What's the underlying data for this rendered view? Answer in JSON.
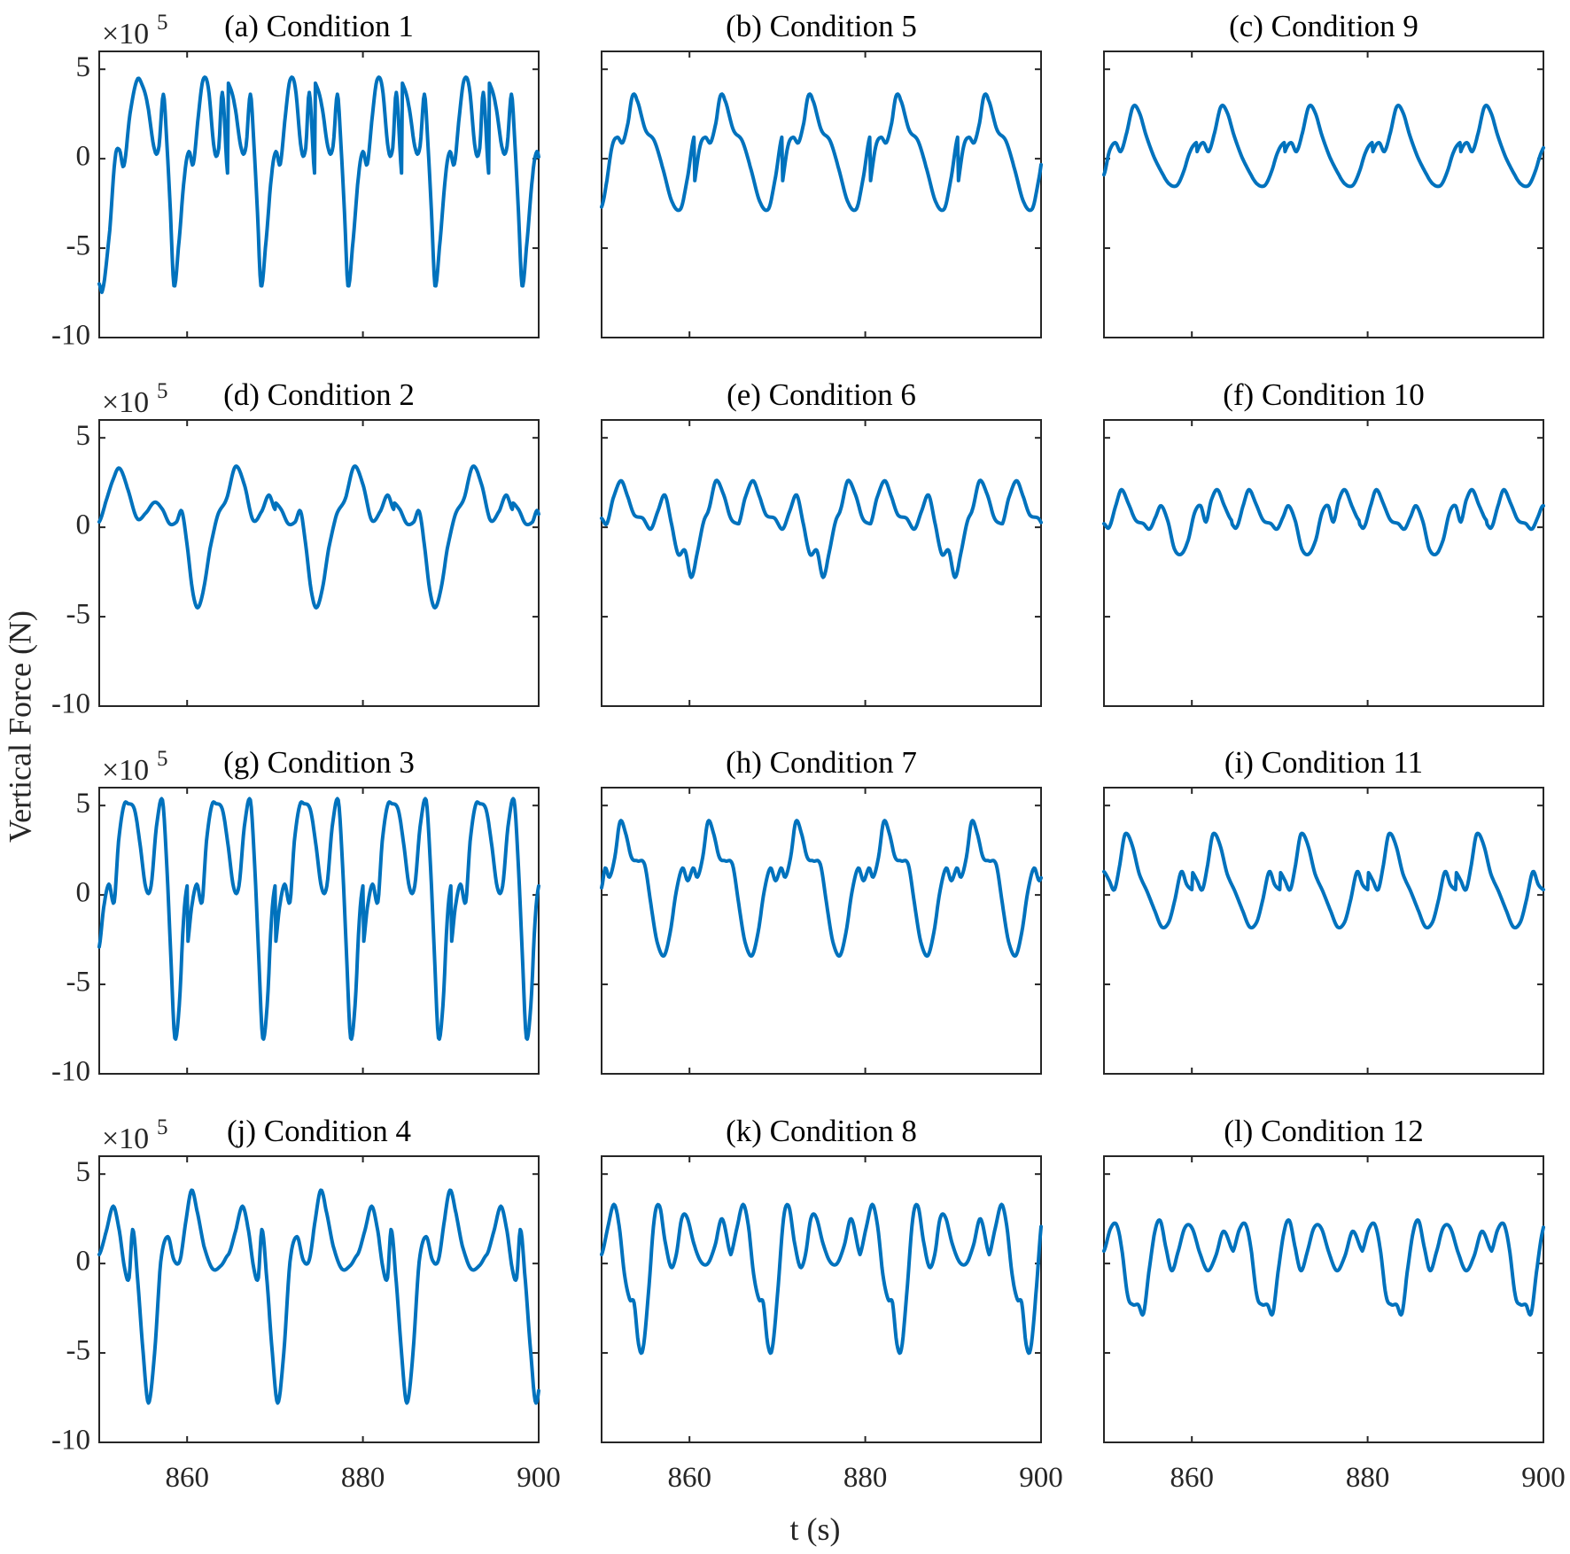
{
  "chart_data": {
    "type": "line",
    "ylabel": "Vertical Force (N)",
    "xlabel": "t (s)",
    "y_multiplier": "×10",
    "y_multiplier_exponent": "5",
    "xlim": [
      850,
      900
    ],
    "ylim": [
      -10,
      6
    ],
    "xticks": [
      860,
      880,
      900
    ],
    "yticks": [
      -10,
      -5,
      0,
      5
    ],
    "xtick_labels": [
      "860",
      "880",
      "900"
    ],
    "ytick_labels": [
      "-10",
      "-5",
      "0",
      "5"
    ],
    "grid": false,
    "line_color": "#0072BD",
    "period_s": 10,
    "panels": [
      {
        "title": "(a) Condition 1",
        "period_s": 9.9,
        "x": [
          850.0,
          850.4,
          851.2,
          851.8,
          852.3,
          852.8,
          853.5,
          854.3,
          854.9,
          855.5,
          856.3,
          856.8,
          857.3,
          857.7,
          858.1,
          858.5,
          859.0,
          859.7,
          860.2,
          860.7,
          861.3,
          861.8,
          862.4,
          863.1,
          863.6,
          864.0,
          864.6
        ],
        "y": [
          -7.0,
          -7.3,
          -4.0,
          0.0,
          0.5,
          -0.4,
          2.5,
          4.4,
          4.1,
          3.0,
          0.5,
          0.7,
          3.6,
          0.8,
          -3.0,
          -7.1,
          -5.0,
          -1.0,
          0.4,
          -0.3,
          2.5,
          4.4,
          4.0,
          0.5,
          0.6,
          3.7,
          -0.8
        ]
      },
      {
        "title": "(b) Condition 5",
        "period_s": 10,
        "x": [
          850.0,
          850.5,
          851.2,
          851.8,
          852.4,
          853.0,
          853.5,
          854.0,
          855.0,
          856.0,
          857.0,
          858.0,
          859.0,
          859.8,
          860.5
        ],
        "y": [
          -2.7,
          -1.5,
          0.7,
          1.2,
          0.9,
          2.0,
          3.5,
          3.3,
          1.6,
          1.0,
          -0.6,
          -2.4,
          -2.8,
          -1.0,
          1.2
        ],
        "repeat": true
      },
      {
        "title": "(c) Condition 9",
        "period_s": 10,
        "x": [
          850.0,
          850.6,
          851.3,
          851.9,
          852.5,
          853.3,
          854.0,
          854.8,
          855.6,
          856.5,
          857.4,
          858.3,
          859.0,
          859.8,
          860.5
        ],
        "y": [
          -0.9,
          0.4,
          0.9,
          0.4,
          1.3,
          2.9,
          2.6,
          1.3,
          0.2,
          -0.7,
          -1.4,
          -1.5,
          -0.8,
          0.4,
          0.9
        ],
        "repeat": true
      },
      {
        "title": "(d) Condition 2",
        "period_s": 13.5,
        "x": [
          850.0,
          850.8,
          851.6,
          852.3,
          853.2,
          854.3,
          855.3,
          856.3,
          857.2,
          858.0,
          858.8,
          859.4,
          860.0,
          860.6,
          861.2,
          861.9,
          862.6,
          863.5,
          864.5,
          865.5,
          866.5,
          867.5,
          868.5,
          869.3,
          870.0
        ],
        "y": [
          0.3,
          1.5,
          2.7,
          3.3,
          2.2,
          0.5,
          0.8,
          1.4,
          1.0,
          0.2,
          0.3,
          0.9,
          -1.0,
          -3.5,
          -4.5,
          -3.4,
          -1.2,
          0.7,
          1.6,
          3.4,
          2.4,
          0.4,
          0.9,
          1.8,
          1.0
        ],
        "repeat": true
      },
      {
        "title": "(e) Condition 6",
        "period_s": 15,
        "x": [
          850.0,
          850.6,
          851.3,
          852.2,
          852.9,
          853.7,
          854.7,
          855.6,
          856.4,
          857.2,
          857.9,
          858.7,
          859.5,
          860.2,
          860.9,
          861.6,
          862.2,
          863.0,
          863.9,
          864.7,
          865.5
        ],
        "y": [
          0.5,
          0.2,
          1.6,
          2.6,
          1.8,
          0.7,
          0.5,
          -0.1,
          0.9,
          1.8,
          0.3,
          -1.5,
          -1.3,
          -2.8,
          -1.4,
          0.3,
          1.0,
          2.6,
          1.8,
          0.5,
          0.2
        ],
        "repeat": true
      },
      {
        "title": "(f) Condition 10",
        "period_s": 14.5,
        "x": [
          850.0,
          850.6,
          851.4,
          852.0,
          852.8,
          853.6,
          854.5,
          855.2,
          855.9,
          856.5,
          857.3,
          858.0,
          858.8,
          859.6,
          860.3,
          861.0,
          861.6,
          862.2,
          862.9,
          863.7,
          864.5
        ],
        "y": [
          0.2,
          0.0,
          1.3,
          2.1,
          1.3,
          0.4,
          0.2,
          -0.1,
          0.6,
          1.2,
          0.3,
          -1.2,
          -1.5,
          -0.7,
          0.8,
          1.2,
          0.3,
          1.5,
          2.1,
          1.2,
          0.4
        ],
        "repeat": true
      },
      {
        "title": "(g) Condition 3",
        "period_s": 10,
        "x": [
          850.0,
          850.5,
          851.1,
          851.7,
          852.2,
          852.8,
          853.3,
          854.0,
          854.6,
          855.3,
          855.9,
          856.5,
          857.2,
          857.7,
          858.2,
          858.6,
          859.1,
          859.6,
          860.0
        ],
        "y": [
          -2.9,
          -0.7,
          0.6,
          -0.4,
          3.0,
          5.0,
          5.1,
          4.8,
          3.0,
          0.4,
          0.5,
          3.8,
          5.3,
          1.5,
          -4.0,
          -8.0,
          -6.2,
          -1.4,
          0.5
        ],
        "repeat": true
      },
      {
        "title": "(h) Condition 7",
        "period_s": 10,
        "x": [
          850.0,
          850.4,
          850.9,
          851.5,
          852.1,
          852.7,
          853.4,
          854.1,
          854.9,
          855.6,
          856.3,
          857.1,
          857.8,
          858.5,
          859.2,
          859.8,
          860.4
        ],
        "y": [
          0.4,
          1.5,
          1.0,
          2.1,
          4.1,
          3.5,
          2.1,
          1.9,
          1.7,
          -0.5,
          -2.6,
          -3.4,
          -2.1,
          0.2,
          1.5,
          0.8,
          1.5
        ],
        "repeat": true
      },
      {
        "title": "(i) Condition 11",
        "period_s": 10,
        "x": [
          850.0,
          850.6,
          851.2,
          851.8,
          852.4,
          853.2,
          854.0,
          854.9,
          855.8,
          856.6,
          857.4,
          858.1,
          858.8,
          859.4,
          860.0
        ],
        "y": [
          1.3,
          0.8,
          0.3,
          1.7,
          3.4,
          2.8,
          1.2,
          0.2,
          -0.9,
          -1.8,
          -1.5,
          -0.2,
          1.3,
          0.6,
          0.3
        ],
        "repeat": true
      },
      {
        "title": "(j) Condition 4",
        "period_s": 14.7,
        "x": [
          850.0,
          850.8,
          851.6,
          852.3,
          852.9,
          853.4,
          853.8,
          854.3,
          855.0,
          855.6,
          856.3,
          857.0,
          857.8,
          858.5,
          859.2,
          859.9,
          860.5,
          861.1,
          861.9,
          862.9,
          863.9,
          864.7
        ],
        "y": [
          0.5,
          1.8,
          3.2,
          1.8,
          -0.3,
          -0.8,
          1.9,
          -0.5,
          -5.0,
          -7.8,
          -5.0,
          0.1,
          1.5,
          0.2,
          0.2,
          2.5,
          4.1,
          3.0,
          1.0,
          -0.3,
          -0.1,
          0.5
        ],
        "repeat": true
      },
      {
        "title": "(k) Condition 8",
        "period_s": 14.7,
        "x": [
          850.0,
          850.7,
          851.4,
          852.0,
          852.6,
          853.2,
          853.7,
          854.2,
          854.7,
          855.3,
          856.0,
          856.6,
          857.2,
          857.9,
          858.5,
          859.1,
          859.7,
          860.5,
          861.3,
          862.1,
          862.9,
          863.7,
          864.7
        ],
        "y": [
          0.5,
          2.0,
          3.3,
          2.1,
          -0.6,
          -2.0,
          -2.2,
          -4.5,
          -4.8,
          -1.8,
          2.5,
          3.2,
          1.3,
          -0.2,
          0.5,
          2.5,
          2.6,
          1.1,
          0.1,
          0.0,
          1.0,
          2.5,
          0.5
        ],
        "repeat": true
      },
      {
        "title": "(l) Condition 12",
        "period_s": 14.7,
        "x": [
          850.0,
          850.7,
          851.4,
          852.0,
          852.7,
          853.3,
          853.9,
          854.5,
          855.1,
          855.8,
          856.4,
          857.0,
          857.7,
          858.4,
          859.2,
          860.0,
          860.9,
          861.8,
          862.7,
          863.6,
          864.7
        ],
        "y": [
          0.7,
          1.9,
          2.2,
          0.9,
          -1.8,
          -2.3,
          -2.3,
          -2.8,
          -0.5,
          1.8,
          2.4,
          1.0,
          -0.4,
          0.6,
          2.0,
          2.0,
          0.6,
          -0.4,
          0.4,
          1.8,
          0.7
        ],
        "repeat": true
      }
    ]
  }
}
